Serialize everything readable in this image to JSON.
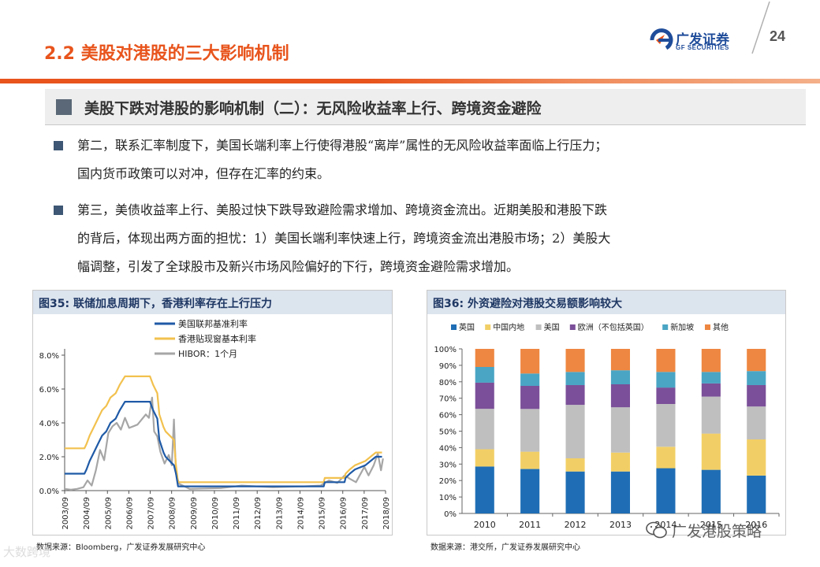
{
  "header": {
    "title": "2.2 美股对港股的三大影响机制",
    "logo_main": "广发证券",
    "logo_sub": "GF SECURITIES",
    "page_number": "24",
    "accent_color": "#e8541c",
    "brand_color": "#1f4c9a"
  },
  "section": {
    "heading": "美股下跌对港股的影响机制（二）：无风险收益率上行、跨境资金避险"
  },
  "bullets": [
    {
      "line1": "第二，联系汇率制度下，美国长端利率上行使得港股“离岸”属性的无风险收益率面临上行压力；",
      "line2": "国内货币政策可以对冲，但存在汇率的约束。"
    },
    {
      "line1": "第三，美债收益率上行、美股过快下跌导致避险需求增加、跨境资金流出。近期美股和港股下跌",
      "line2": "的背后，体现出两方面的担忧：1）美国长端利率快速上行，跨境资金流出港股市场；2）美股大",
      "line3": "幅调整，引发了全球股市及新兴市场风险偏好的下行，跨境资金避险需求增加。"
    }
  ],
  "figures": {
    "fig35_caption": "图35: 联储加息周期下，香港利率存在上行压力",
    "fig36_caption": "图36: 外资避险对港股交易额影响较大",
    "fig35_source": "数据来源：Bloomberg，广发证券发展研究中心",
    "fig36_source": "数据来源：港交所，广发证券发展研究中心"
  },
  "watermark": {
    "text": "广发港股策略",
    "corner": "大数跨境"
  },
  "chart_data": [
    {
      "type": "line",
      "title": "图35: 联储加息周期下，香港利率存在上行压力",
      "xlabel": "",
      "ylabel": "",
      "ylim": [
        0,
        8
      ],
      "yticks": [
        "0.0%",
        "2.0%",
        "4.0%",
        "6.0%",
        "8.0%"
      ],
      "xticks": [
        "2003/09",
        "2004/09",
        "2005/09",
        "2006/09",
        "2007/09",
        "2008/09",
        "2009/09",
        "2010/09",
        "2011/09",
        "2012/09",
        "2013/09",
        "2014/09",
        "2015/09",
        "2016/09",
        "2017/09",
        "2018/09"
      ],
      "legend_position": "top-left",
      "grid": false,
      "series": [
        {
          "name": "美国联邦基准利率",
          "color": "#1f5aa6",
          "points": [
            [
              2003.5,
              1.0
            ],
            [
              2004.45,
              1.0
            ],
            [
              2004.55,
              1.25
            ],
            [
              2004.7,
              1.75
            ],
            [
              2004.9,
              2.25
            ],
            [
              2005.1,
              2.75
            ],
            [
              2005.3,
              3.25
            ],
            [
              2005.5,
              3.5
            ],
            [
              2005.7,
              4.0
            ],
            [
              2005.95,
              4.25
            ],
            [
              2006.15,
              4.75
            ],
            [
              2006.4,
              5.25
            ],
            [
              2007.6,
              5.25
            ],
            [
              2007.75,
              4.75
            ],
            [
              2007.95,
              4.25
            ],
            [
              2008.05,
              3.0
            ],
            [
              2008.25,
              2.25
            ],
            [
              2008.35,
              2.0
            ],
            [
              2008.75,
              1.5
            ],
            [
              2008.85,
              1.0
            ],
            [
              2008.95,
              0.25
            ],
            [
              2015.95,
              0.25
            ],
            [
              2016.0,
              0.5
            ],
            [
              2016.95,
              0.5
            ],
            [
              2017.0,
              0.75
            ],
            [
              2017.2,
              1.0
            ],
            [
              2017.45,
              1.25
            ],
            [
              2017.95,
              1.5
            ],
            [
              2018.2,
              1.75
            ],
            [
              2018.45,
              2.0
            ],
            [
              2018.75,
              2.0
            ]
          ]
        },
        {
          "name": "香港贴现窗基本利率",
          "color": "#f2c14e",
          "points": [
            [
              2003.5,
              2.5
            ],
            [
              2004.45,
              2.5
            ],
            [
              2004.55,
              2.75
            ],
            [
              2004.7,
              3.25
            ],
            [
              2004.9,
              3.75
            ],
            [
              2005.1,
              4.25
            ],
            [
              2005.3,
              4.75
            ],
            [
              2005.5,
              5.0
            ],
            [
              2005.7,
              5.5
            ],
            [
              2005.95,
              5.75
            ],
            [
              2006.15,
              6.25
            ],
            [
              2006.4,
              6.75
            ],
            [
              2007.6,
              6.75
            ],
            [
              2007.75,
              6.25
            ],
            [
              2007.95,
              5.75
            ],
            [
              2008.05,
              4.5
            ],
            [
              2008.25,
              3.75
            ],
            [
              2008.35,
              3.5
            ],
            [
              2008.75,
              3.0
            ],
            [
              2008.85,
              1.5
            ],
            [
              2008.95,
              0.5
            ],
            [
              2015.95,
              0.5
            ],
            [
              2016.0,
              0.75
            ],
            [
              2016.95,
              0.75
            ],
            [
              2017.0,
              1.0
            ],
            [
              2017.2,
              1.25
            ],
            [
              2017.45,
              1.5
            ],
            [
              2017.95,
              1.75
            ],
            [
              2018.2,
              2.0
            ],
            [
              2018.45,
              2.25
            ],
            [
              2018.75,
              2.25
            ]
          ]
        },
        {
          "name": "HIBOR：1个月",
          "color": "#a6a6a6",
          "points": [
            [
              2003.5,
              0.1
            ],
            [
              2003.8,
              0.05
            ],
            [
              2004.1,
              0.1
            ],
            [
              2004.4,
              0.2
            ],
            [
              2004.6,
              0.6
            ],
            [
              2004.8,
              0.3
            ],
            [
              2005.0,
              1.2
            ],
            [
              2005.2,
              2.4
            ],
            [
              2005.4,
              1.8
            ],
            [
              2005.6,
              3.4
            ],
            [
              2005.8,
              3.8
            ],
            [
              2006.0,
              4.0
            ],
            [
              2006.2,
              3.6
            ],
            [
              2006.4,
              4.3
            ],
            [
              2006.6,
              3.7
            ],
            [
              2006.8,
              3.8
            ],
            [
              2007.0,
              3.9
            ],
            [
              2007.2,
              4.2
            ],
            [
              2007.4,
              4.5
            ],
            [
              2007.55,
              4.3
            ],
            [
              2007.7,
              5.5
            ],
            [
              2007.8,
              3.5
            ],
            [
              2007.95,
              3.2
            ],
            [
              2008.1,
              2.3
            ],
            [
              2008.3,
              1.6
            ],
            [
              2008.5,
              2.1
            ],
            [
              2008.65,
              1.5
            ],
            [
              2008.75,
              4.2
            ],
            [
              2008.85,
              1.0
            ],
            [
              2009.0,
              0.4
            ],
            [
              2009.5,
              0.1
            ],
            [
              2011.0,
              0.15
            ],
            [
              2012.0,
              0.3
            ],
            [
              2013.5,
              0.2
            ],
            [
              2015.0,
              0.25
            ],
            [
              2015.8,
              0.3
            ],
            [
              2016.2,
              0.6
            ],
            [
              2016.6,
              0.45
            ],
            [
              2016.95,
              0.9
            ],
            [
              2017.2,
              0.7
            ],
            [
              2017.5,
              0.5
            ],
            [
              2017.9,
              1.4
            ],
            [
              2018.1,
              0.9
            ],
            [
              2018.35,
              1.5
            ],
            [
              2018.55,
              2.2
            ],
            [
              2018.7,
              1.2
            ],
            [
              2018.8,
              1.9
            ]
          ]
        }
      ]
    },
    {
      "type": "bar",
      "stacked": true,
      "title": "图36: 外资避险对港股交易额影响较大",
      "categories": [
        "2010",
        "2011",
        "2012",
        "2013",
        "2014",
        "2015",
        "2016"
      ],
      "ylim": [
        0,
        100
      ],
      "yticks": [
        "0%",
        "10%",
        "20%",
        "30%",
        "40%",
        "50%",
        "60%",
        "70%",
        "80%",
        "90%",
        "100%"
      ],
      "legend_position": "top",
      "grid": false,
      "series": [
        {
          "name": "英国",
          "color": "#1f6eb5",
          "values": [
            28.5,
            27,
            25.5,
            25.5,
            27.5,
            26.5,
            23
          ]
        },
        {
          "name": "中国内地",
          "color": "#f2cf66",
          "values": [
            10.5,
            10.5,
            8,
            11.5,
            13,
            22,
            22
          ]
        },
        {
          "name": "美国",
          "color": "#bfbfbf",
          "values": [
            24.5,
            26,
            32.5,
            27.5,
            26,
            22.5,
            20
          ]
        },
        {
          "name": "欧洲（不包括英国）",
          "color": "#7b4f99",
          "values": [
            16,
            14,
            12,
            14,
            10,
            8,
            13
          ]
        },
        {
          "name": "新加坡",
          "color": "#4aa5c4",
          "values": [
            9.5,
            7.5,
            8,
            8.5,
            9.5,
            7,
            8.5
          ]
        },
        {
          "name": "其他",
          "color": "#ee8741",
          "values": [
            11,
            15,
            14,
            13,
            14,
            14,
            13.5
          ]
        }
      ]
    }
  ]
}
